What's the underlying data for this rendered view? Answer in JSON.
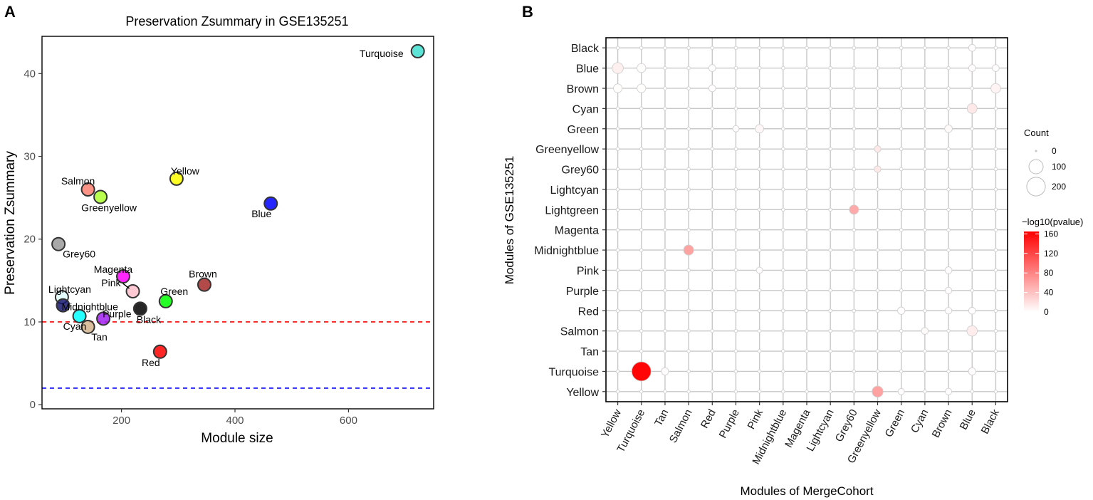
{
  "panel_a_letter": "A",
  "panel_b_letter": "B",
  "chart_data": [
    {
      "type": "scatter",
      "title": "Preservation Zsummary in GSE135251",
      "xlabel": "Module size",
      "ylabel": "Preservation Zsummary",
      "xlim": [
        60,
        750
      ],
      "ylim": [
        -0.5,
        44.5
      ],
      "xticks": [
        200,
        400,
        600
      ],
      "yticks": [
        0,
        10,
        20,
        30,
        40
      ],
      "grid": false,
      "reference_lines": [
        {
          "y": 10,
          "color": "#ff0000",
          "style": "dashed"
        },
        {
          "y": 2,
          "color": "#0000ff",
          "style": "dashed"
        }
      ],
      "points": [
        {
          "name": "Turquoise",
          "x": 722,
          "y": 42.7,
          "color": "#40e0d0"
        },
        {
          "name": "Yellow",
          "x": 297,
          "y": 27.3,
          "color": "#ffff00"
        },
        {
          "name": "Salmon",
          "x": 141,
          "y": 26.0,
          "color": "#fa8072"
        },
        {
          "name": "Greenyellow",
          "x": 163,
          "y": 25.1,
          "color": "#adff2f"
        },
        {
          "name": "Blue",
          "x": 463,
          "y": 24.3,
          "color": "#0000ff"
        },
        {
          "name": "Grey60",
          "x": 89,
          "y": 19.4,
          "color": "#999999"
        },
        {
          "name": "Magenta",
          "x": 203,
          "y": 15.5,
          "color": "#ff00ff"
        },
        {
          "name": "Brown",
          "x": 346,
          "y": 14.5,
          "color": "#a52a2a"
        },
        {
          "name": "Pink",
          "x": 220,
          "y": 13.7,
          "color": "#ffc0cb"
        },
        {
          "name": "Lightcyan",
          "x": 95,
          "y": 13.0,
          "color": "#e0ffff"
        },
        {
          "name": "Green",
          "x": 278,
          "y": 12.5,
          "color": "#00ff00"
        },
        {
          "name": "Midnightblue",
          "x": 97,
          "y": 12.0,
          "color": "#191970"
        },
        {
          "name": "Black",
          "x": 233,
          "y": 11.6,
          "color": "#000000"
        },
        {
          "name": "Cyan",
          "x": 126,
          "y": 10.7,
          "color": "#00ffff"
        },
        {
          "name": "Purple",
          "x": 168,
          "y": 10.4,
          "color": "#a020f0"
        },
        {
          "name": "Tan",
          "x": 141,
          "y": 9.4,
          "color": "#d2b48c"
        },
        {
          "name": "Red",
          "x": 268,
          "y": 6.4,
          "color": "#ff0000"
        }
      ]
    },
    {
      "type": "heatmap",
      "subtype": "bubble",
      "xlabel": "Modules of MergeCohort",
      "ylabel": "Modules of GSE135251",
      "x_categories": [
        "Yellow",
        "Turquoise",
        "Tan",
        "Salmon",
        "Red",
        "Purple",
        "Pink",
        "Midnightblue",
        "Magenta",
        "Lightcyan",
        "Grey60",
        "Greenyellow",
        "Green",
        "Cyan",
        "Brown",
        "Blue",
        "Black"
      ],
      "y_categories": [
        "Black",
        "Blue",
        "Brown",
        "Cyan",
        "Green",
        "Greenyellow",
        "Grey60",
        "Lightcyan",
        "Lightgreen",
        "Magenta",
        "Midnightblue",
        "Pink",
        "Purple",
        "Red",
        "Salmon",
        "Tan",
        "Turquoise",
        "Yellow"
      ],
      "size_legend": {
        "title": "Count",
        "breaks": [
          0,
          100,
          200
        ]
      },
      "color_legend": {
        "title": "−log10(pvalue)",
        "breaks": [
          0,
          40,
          80,
          120,
          160
        ],
        "low": "#ffffff",
        "high": "#ff0000",
        "max": 165
      },
      "cells": [
        {
          "x": "Turquoise",
          "y": "Turquoise",
          "count": 260,
          "neglog10p": 162
        },
        {
          "x": "Greenyellow",
          "y": "Yellow",
          "count": 60,
          "neglog10p": 60
        },
        {
          "x": "Salmon",
          "y": "Midnightblue",
          "count": 45,
          "neglog10p": 60
        },
        {
          "x": "Grey60",
          "y": "Lightgreen",
          "count": 35,
          "neglog10p": 55
        },
        {
          "x": "Yellow",
          "y": "Blue",
          "count": 60,
          "neglog10p": 10
        },
        {
          "x": "Blue",
          "y": "Salmon",
          "count": 50,
          "neglog10p": 12
        },
        {
          "x": "Blue",
          "y": "Cyan",
          "count": 42,
          "neglog10p": 15
        },
        {
          "x": "Black",
          "y": "Brown",
          "count": 40,
          "neglog10p": 8
        },
        {
          "x": "Turquoise",
          "y": "Blue",
          "count": 30,
          "neglog10p": 2
        },
        {
          "x": "Yellow",
          "y": "Brown",
          "count": 28,
          "neglog10p": 2
        },
        {
          "x": "Turquoise",
          "y": "Brown",
          "count": 28,
          "neglog10p": 2
        },
        {
          "x": "Pink",
          "y": "Green",
          "count": 25,
          "neglog10p": 5
        },
        {
          "x": "Greenyellow",
          "y": "Greenyellow",
          "count": 10,
          "neglog10p": 15
        },
        {
          "x": "Greenyellow",
          "y": "Grey60",
          "count": 10,
          "neglog10p": 15
        },
        {
          "x": "Tan",
          "y": "Turquoise",
          "count": 15,
          "neglog10p": 2
        },
        {
          "x": "Blue",
          "y": "Turquoise",
          "count": 15,
          "neglog10p": 1
        },
        {
          "x": "Brown",
          "y": "Green",
          "count": 18,
          "neglog10p": 3
        },
        {
          "x": "Cyan",
          "y": "Salmon",
          "count": 12,
          "neglog10p": 3
        },
        {
          "x": "Green",
          "y": "Red",
          "count": 15,
          "neglog10p": 1
        },
        {
          "x": "Blue",
          "y": "Red",
          "count": 12,
          "neglog10p": 1
        },
        {
          "x": "Brown",
          "y": "Pink",
          "count": 12,
          "neglog10p": 1
        },
        {
          "x": "Blue",
          "y": "Black",
          "count": 12,
          "neglog10p": 1
        },
        {
          "x": "Blue",
          "y": "Blue",
          "count": 12,
          "neglog10p": 1
        },
        {
          "x": "Red",
          "y": "Blue",
          "count": 12,
          "neglog10p": 1
        },
        {
          "x": "Red",
          "y": "Brown",
          "count": 12,
          "neglog10p": 1
        },
        {
          "x": "Black",
          "y": "Blue",
          "count": 12,
          "neglog10p": 1
        },
        {
          "x": "Brown",
          "y": "Red",
          "count": 10,
          "neglog10p": 1
        },
        {
          "x": "Brown",
          "y": "Purple",
          "count": 10,
          "neglog10p": 1
        },
        {
          "x": "Brown",
          "y": "Yellow",
          "count": 10,
          "neglog10p": 1
        },
        {
          "x": "Purple",
          "y": "Green",
          "count": 8,
          "neglog10p": 1
        },
        {
          "x": "Green",
          "y": "Yellow",
          "count": 8,
          "neglog10p": 1
        },
        {
          "x": "Pink",
          "y": "Pink",
          "count": 8,
          "neglog10p": 1
        }
      ]
    }
  ]
}
